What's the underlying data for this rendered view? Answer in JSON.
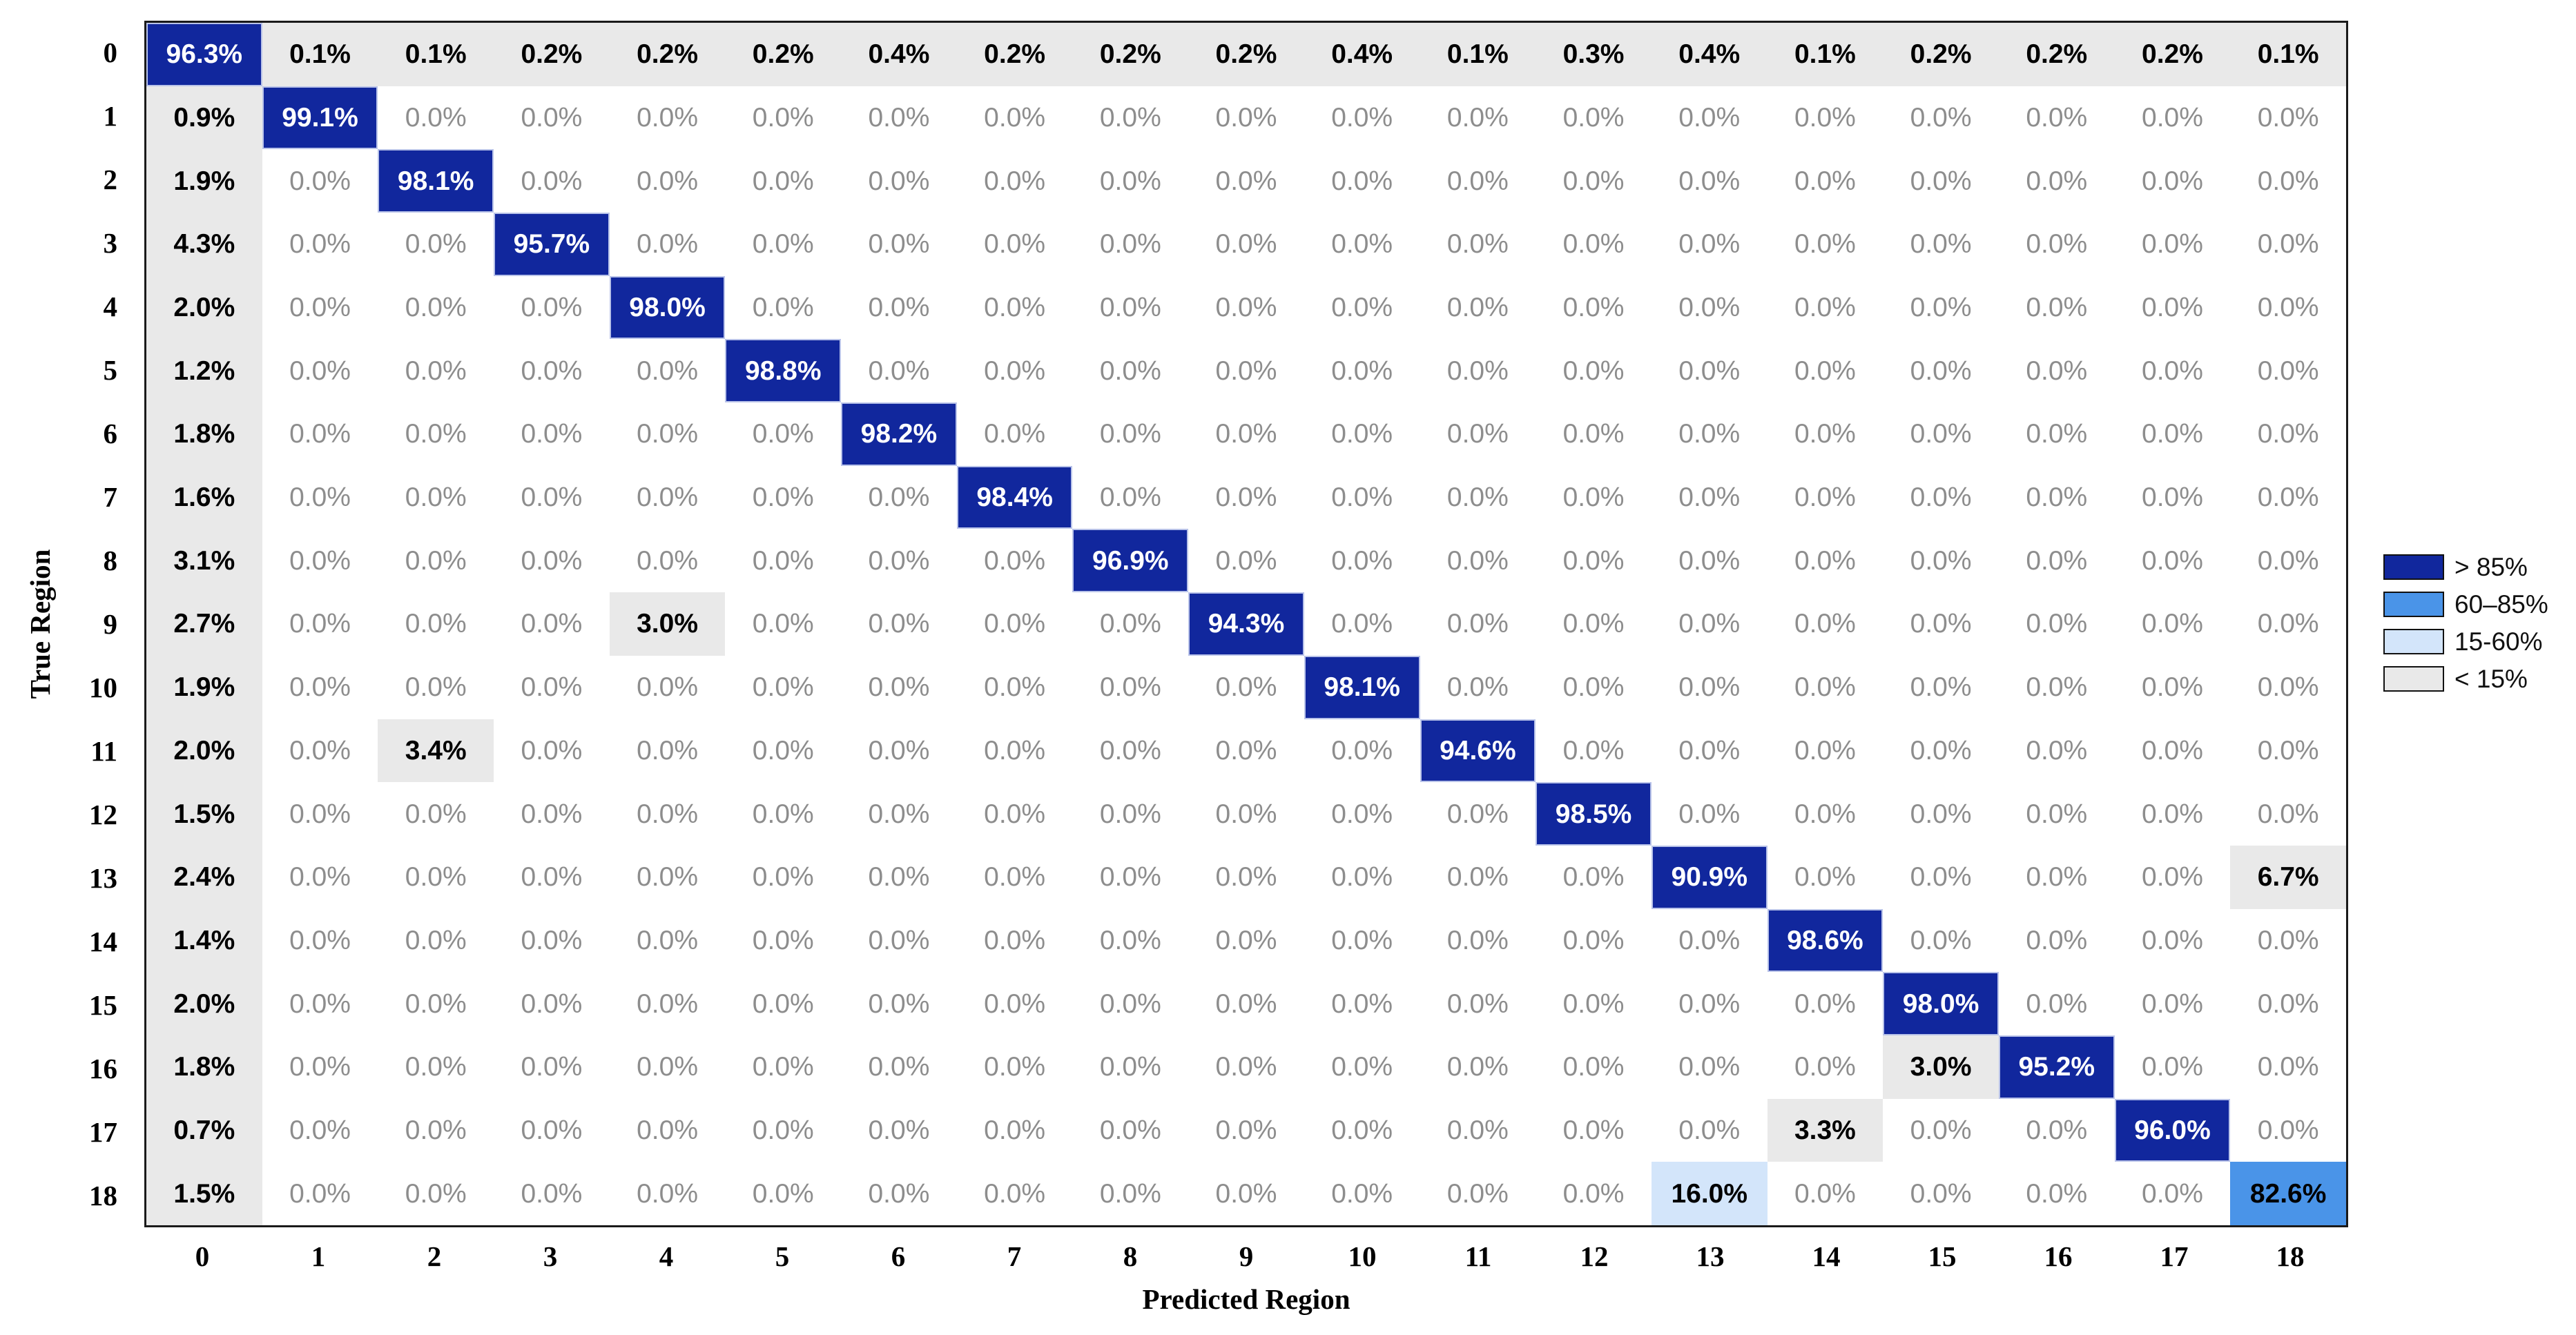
{
  "figure": {
    "background": "#ffffff",
    "axis_color": "#1a1a1a"
  },
  "chart_data": {
    "type": "heatmap",
    "title": "",
    "xlabel": "Predicted Region",
    "ylabel": "True Region",
    "x_tick_labels": [
      "0",
      "1",
      "2",
      "3",
      "4",
      "5",
      "6",
      "7",
      "8",
      "9",
      "10",
      "11",
      "12",
      "13",
      "14",
      "15",
      "16",
      "17",
      "18"
    ],
    "y_tick_labels": [
      "0",
      "1",
      "2",
      "3",
      "4",
      "5",
      "6",
      "7",
      "8",
      "9",
      "10",
      "11",
      "12",
      "13",
      "14",
      "15",
      "16",
      "17",
      "18"
    ],
    "value_format": "one_decimal_percent",
    "values": [
      [
        96.3,
        0.1,
        0.1,
        0.2,
        0.2,
        0.2,
        0.4,
        0.2,
        0.2,
        0.2,
        0.4,
        0.1,
        0.3,
        0.4,
        0.1,
        0.2,
        0.2,
        0.2,
        0.1
      ],
      [
        0.9,
        99.1,
        0.0,
        0.0,
        0.0,
        0.0,
        0.0,
        0.0,
        0.0,
        0.0,
        0.0,
        0.0,
        0.0,
        0.0,
        0.0,
        0.0,
        0.0,
        0.0,
        0.0
      ],
      [
        1.9,
        0.0,
        98.1,
        0.0,
        0.0,
        0.0,
        0.0,
        0.0,
        0.0,
        0.0,
        0.0,
        0.0,
        0.0,
        0.0,
        0.0,
        0.0,
        0.0,
        0.0,
        0.0
      ],
      [
        4.3,
        0.0,
        0.0,
        95.7,
        0.0,
        0.0,
        0.0,
        0.0,
        0.0,
        0.0,
        0.0,
        0.0,
        0.0,
        0.0,
        0.0,
        0.0,
        0.0,
        0.0,
        0.0
      ],
      [
        2.0,
        0.0,
        0.0,
        0.0,
        98.0,
        0.0,
        0.0,
        0.0,
        0.0,
        0.0,
        0.0,
        0.0,
        0.0,
        0.0,
        0.0,
        0.0,
        0.0,
        0.0,
        0.0
      ],
      [
        1.2,
        0.0,
        0.0,
        0.0,
        0.0,
        98.8,
        0.0,
        0.0,
        0.0,
        0.0,
        0.0,
        0.0,
        0.0,
        0.0,
        0.0,
        0.0,
        0.0,
        0.0,
        0.0
      ],
      [
        1.8,
        0.0,
        0.0,
        0.0,
        0.0,
        0.0,
        98.2,
        0.0,
        0.0,
        0.0,
        0.0,
        0.0,
        0.0,
        0.0,
        0.0,
        0.0,
        0.0,
        0.0,
        0.0
      ],
      [
        1.6,
        0.0,
        0.0,
        0.0,
        0.0,
        0.0,
        0.0,
        98.4,
        0.0,
        0.0,
        0.0,
        0.0,
        0.0,
        0.0,
        0.0,
        0.0,
        0.0,
        0.0,
        0.0
      ],
      [
        3.1,
        0.0,
        0.0,
        0.0,
        0.0,
        0.0,
        0.0,
        0.0,
        96.9,
        0.0,
        0.0,
        0.0,
        0.0,
        0.0,
        0.0,
        0.0,
        0.0,
        0.0,
        0.0
      ],
      [
        2.7,
        0.0,
        0.0,
        0.0,
        3.0,
        0.0,
        0.0,
        0.0,
        0.0,
        94.3,
        0.0,
        0.0,
        0.0,
        0.0,
        0.0,
        0.0,
        0.0,
        0.0,
        0.0
      ],
      [
        1.9,
        0.0,
        0.0,
        0.0,
        0.0,
        0.0,
        0.0,
        0.0,
        0.0,
        0.0,
        98.1,
        0.0,
        0.0,
        0.0,
        0.0,
        0.0,
        0.0,
        0.0,
        0.0
      ],
      [
        2.0,
        0.0,
        3.4,
        0.0,
        0.0,
        0.0,
        0.0,
        0.0,
        0.0,
        0.0,
        0.0,
        94.6,
        0.0,
        0.0,
        0.0,
        0.0,
        0.0,
        0.0,
        0.0
      ],
      [
        1.5,
        0.0,
        0.0,
        0.0,
        0.0,
        0.0,
        0.0,
        0.0,
        0.0,
        0.0,
        0.0,
        0.0,
        98.5,
        0.0,
        0.0,
        0.0,
        0.0,
        0.0,
        0.0
      ],
      [
        2.4,
        0.0,
        0.0,
        0.0,
        0.0,
        0.0,
        0.0,
        0.0,
        0.0,
        0.0,
        0.0,
        0.0,
        0.0,
        90.9,
        0.0,
        0.0,
        0.0,
        0.0,
        6.7
      ],
      [
        1.4,
        0.0,
        0.0,
        0.0,
        0.0,
        0.0,
        0.0,
        0.0,
        0.0,
        0.0,
        0.0,
        0.0,
        0.0,
        0.0,
        98.6,
        0.0,
        0.0,
        0.0,
        0.0
      ],
      [
        2.0,
        0.0,
        0.0,
        0.0,
        0.0,
        0.0,
        0.0,
        0.0,
        0.0,
        0.0,
        0.0,
        0.0,
        0.0,
        0.0,
        0.0,
        98.0,
        0.0,
        0.0,
        0.0
      ],
      [
        1.8,
        0.0,
        0.0,
        0.0,
        0.0,
        0.0,
        0.0,
        0.0,
        0.0,
        0.0,
        0.0,
        0.0,
        0.0,
        0.0,
        0.0,
        3.0,
        95.2,
        0.0,
        0.0
      ],
      [
        0.7,
        0.0,
        0.0,
        0.0,
        0.0,
        0.0,
        0.0,
        0.0,
        0.0,
        0.0,
        0.0,
        0.0,
        0.0,
        0.0,
        3.3,
        0.0,
        0.0,
        96.0,
        0.0
      ],
      [
        1.5,
        0.0,
        0.0,
        0.0,
        0.0,
        0.0,
        0.0,
        0.0,
        0.0,
        0.0,
        0.0,
        0.0,
        0.0,
        16.0,
        0.0,
        0.0,
        0.0,
        0.0,
        82.6
      ]
    ],
    "legend": {
      "position": "right",
      "entries": [
        {
          "label": "> 85%",
          "color": "#11279d",
          "min": 85,
          "max": 100
        },
        {
          "label": "60–85%",
          "color": "#4a94e8",
          "min": 60,
          "max": 85
        },
        {
          "label": "15-60%",
          "color": "#d3e5fa",
          "min": 15,
          "max": 60
        },
        {
          "label": "< 15%",
          "color": "#e9e9e9",
          "min": 0,
          "max": 15
        }
      ]
    },
    "cell_text_colors": {
      "on_dark": "#ffffff",
      "nonzero": "#000000",
      "zero": "#8d8d8d"
    }
  }
}
